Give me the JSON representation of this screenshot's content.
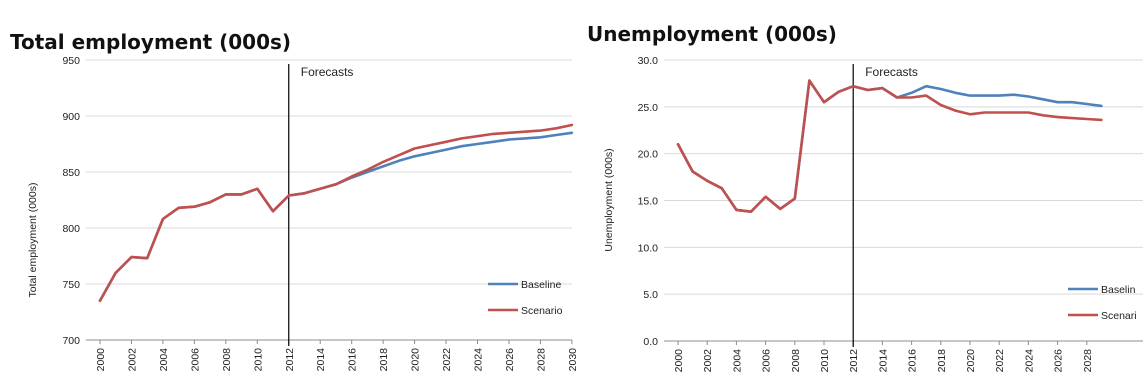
{
  "chart_data": [
    {
      "type": "line",
      "title": "Total employment (000s)",
      "xlabel": "",
      "ylabel": "Total employment (000s)",
      "ylim": [
        700,
        950
      ],
      "yticks": [
        "700",
        "750",
        "800",
        "850",
        "900",
        "950"
      ],
      "x": [
        2000,
        2001,
        2002,
        2003,
        2004,
        2005,
        2006,
        2007,
        2008,
        2009,
        2010,
        2011,
        2012,
        2013,
        2014,
        2015,
        2016,
        2017,
        2018,
        2019,
        2020,
        2021,
        2022,
        2023,
        2024,
        2025,
        2026,
        2027,
        2028,
        2029,
        2030
      ],
      "xticks": [
        "2000",
        "2002",
        "2004",
        "2006",
        "2008",
        "2010",
        "2012",
        "2014",
        "2016",
        "2018",
        "2020",
        "2022",
        "2024",
        "2026",
        "2028",
        "2030"
      ],
      "annotation": {
        "text": "Forecasts",
        "x": 2012
      },
      "legend_position": "bottom-right",
      "series": [
        {
          "name": "Baseline",
          "color": "#4F81BD",
          "values": [
            735,
            760,
            774,
            773,
            808,
            818,
            819,
            823,
            830,
            830,
            835,
            815,
            829,
            831,
            835,
            839,
            845,
            850,
            855,
            860,
            864,
            867,
            870,
            873,
            875,
            877,
            879,
            880,
            881,
            883,
            885
          ]
        },
        {
          "name": "Scenario",
          "color": "#C0504D",
          "values": [
            735,
            760,
            774,
            773,
            808,
            818,
            819,
            823,
            830,
            830,
            835,
            815,
            829,
            831,
            835,
            839,
            846,
            852,
            859,
            865,
            871,
            874,
            877,
            880,
            882,
            884,
            885,
            886,
            887,
            889,
            892
          ]
        }
      ]
    },
    {
      "type": "line",
      "title": "Unemployment (000s)",
      "xlabel": "",
      "ylabel": "Unemployment (000s)",
      "ylim": [
        0,
        30
      ],
      "yticks": [
        "0.0",
        "5.0",
        "10.0",
        "15.0",
        "20.0",
        "25.0",
        "30.0"
      ],
      "x": [
        2000,
        2001,
        2002,
        2003,
        2004,
        2005,
        2006,
        2007,
        2008,
        2009,
        2010,
        2011,
        2012,
        2013,
        2014,
        2015,
        2016,
        2017,
        2018,
        2019,
        2020,
        2021,
        2022,
        2023,
        2024,
        2025,
        2026,
        2027,
        2028,
        2029
      ],
      "xticks": [
        "2000",
        "2002",
        "2004",
        "2006",
        "2008",
        "2010",
        "2012",
        "2014",
        "2016",
        "2018",
        "2020",
        "2022",
        "2024",
        "2026",
        "2028"
      ],
      "annotation": {
        "text": "Forecasts",
        "x": 2012
      },
      "legend_position": "bottom-right",
      "legend_labels": [
        "Baselin",
        "Scenari"
      ],
      "series": [
        {
          "name": "Baseline",
          "color": "#4F81BD",
          "values": [
            21.0,
            18.1,
            17.1,
            16.3,
            14.0,
            13.8,
            15.4,
            14.1,
            15.2,
            27.8,
            25.5,
            26.6,
            27.2,
            26.8,
            27.0,
            26.0,
            26.5,
            27.2,
            26.9,
            26.5,
            26.2,
            26.2,
            26.2,
            26.3,
            26.1,
            25.8,
            25.5,
            25.5,
            25.3,
            25.1
          ]
        },
        {
          "name": "Scenario",
          "color": "#C0504D",
          "values": [
            21.0,
            18.1,
            17.1,
            16.3,
            14.0,
            13.8,
            15.4,
            14.1,
            15.2,
            27.8,
            25.5,
            26.6,
            27.2,
            26.8,
            27.0,
            26.0,
            26.0,
            26.2,
            25.2,
            24.6,
            24.2,
            24.4,
            24.4,
            24.4,
            24.4,
            24.1,
            23.9,
            23.8,
            23.7,
            23.6
          ]
        }
      ]
    }
  ]
}
